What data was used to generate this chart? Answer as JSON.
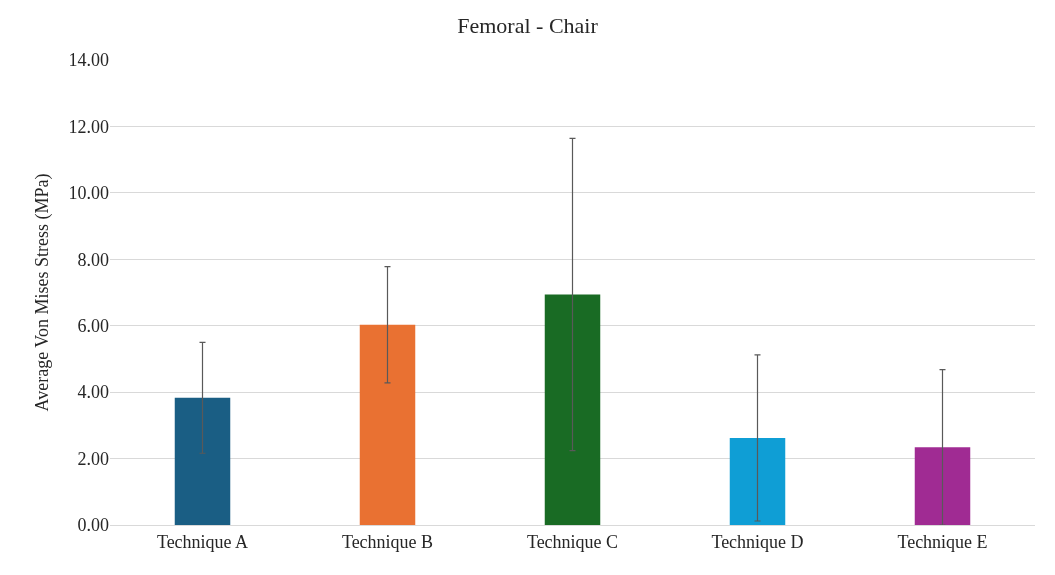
{
  "chart_data": {
    "type": "bar",
    "title": "Femoral - Chair",
    "ylabel": "Average Von Mises Stress (MPa)",
    "categories": [
      "Technique A",
      "Technique B",
      "Technique C",
      "Technique D",
      "Technique E"
    ],
    "values": [
      3.83,
      6.03,
      6.94,
      2.62,
      2.34
    ],
    "errors": [
      1.67,
      1.75,
      4.7,
      2.5,
      2.34
    ],
    "colors": [
      "#1a5e84",
      "#e97132",
      "#196b24",
      "#0f9ed5",
      "#a02b93"
    ],
    "ylim": [
      0,
      14
    ],
    "yticks": [
      {
        "value": 0,
        "label": "0.00"
      },
      {
        "value": 2,
        "label": "2.00"
      },
      {
        "value": 4,
        "label": "4.00"
      },
      {
        "value": 6,
        "label": "6.00"
      },
      {
        "value": 8,
        "label": "8.00"
      },
      {
        "value": 10,
        "label": "10.00"
      },
      {
        "value": 12,
        "label": "12.00"
      },
      {
        "value": 14,
        "label": "14.00"
      }
    ],
    "grid": "y"
  }
}
